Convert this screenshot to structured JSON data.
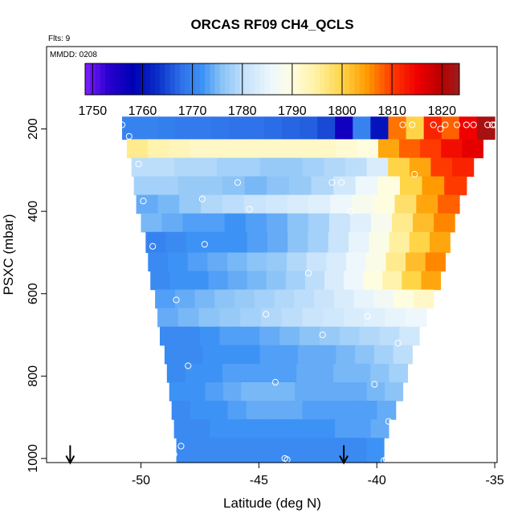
{
  "chart_data": {
    "type": "heatmap",
    "title": "ORCAS RF09 CH4_QCLS",
    "flights_note": "Flts: 9",
    "date_note": "MMDD: 0208",
    "xlabel": "Latitude (deg N)",
    "ylabel": "PSXC (mbar)",
    "xlim": [
      -54,
      -34.9
    ],
    "ylim": [
      1010,
      0
    ],
    "x_ticks": [
      -50,
      -45,
      -40,
      -35
    ],
    "x_tick_labels": [
      "-50",
      "-45",
      "-40",
      "-35"
    ],
    "y_ticks": [
      200,
      400,
      600,
      800,
      1000
    ],
    "y_tick_labels": [
      "200",
      "400",
      "600",
      "800",
      "1000"
    ],
    "colorbar": {
      "min": 1748.5,
      "max": 1823.5,
      "ticks": [
        1750,
        1760,
        1770,
        1780,
        1790,
        1800,
        1810,
        1820
      ],
      "tick_labels": [
        "1750",
        "1760",
        "1770",
        "1780",
        "1790",
        "1800",
        "1810",
        "1820"
      ]
    },
    "color_stops": [
      {
        "v": 1748.5,
        "c": "#7f1fff"
      },
      {
        "v": 1753,
        "c": "#2b00d0"
      },
      {
        "v": 1758,
        "c": "#0000b4"
      },
      {
        "v": 1763,
        "c": "#0a2fc8"
      },
      {
        "v": 1768,
        "c": "#2f73ea"
      },
      {
        "v": 1772,
        "c": "#3d92f5"
      },
      {
        "v": 1776,
        "c": "#8cc4f7"
      },
      {
        "v": 1781,
        "c": "#c9e4fb"
      },
      {
        "v": 1786,
        "c": "#eef8fc"
      },
      {
        "v": 1790,
        "c": "#fffde0"
      },
      {
        "v": 1795,
        "c": "#fff0a0"
      },
      {
        "v": 1800,
        "c": "#ffd447"
      },
      {
        "v": 1805,
        "c": "#ff9a00"
      },
      {
        "v": 1810,
        "c": "#ff3a00"
      },
      {
        "v": 1815,
        "c": "#f00000"
      },
      {
        "v": 1820,
        "c": "#b80000"
      },
      {
        "v": 1823.5,
        "c": "#9a1e1e"
      }
    ],
    "profile_bands": [
      {
        "p_top": 170,
        "p_bot": 225,
        "lat_start": -50.8,
        "lat_end": -35.0,
        "values": [
          1770,
          1770,
          1769.5,
          1769,
          1769,
          1768.5,
          1768,
          1768,
          1767.5,
          1767,
          1766.5,
          1765,
          1756,
          1770,
          1760,
          1807,
          1800,
          1812,
          1808,
          1815,
          1822
        ]
      },
      {
        "p_top": 225,
        "p_bot": 270,
        "lat_start": -50.6,
        "lat_end": -35.5,
        "values": [
          1796,
          1794,
          1793,
          1792,
          1792,
          1792,
          1792,
          1792,
          1792,
          1792,
          1791,
          1790,
          1804,
          1808,
          1810,
          1814,
          1816
        ]
      },
      {
        "p_top": 270,
        "p_bot": 315,
        "lat_start": -50.4,
        "lat_end": -35.9,
        "values": [
          1780,
          1780,
          1779,
          1779,
          1778,
          1778,
          1777,
          1777,
          1778,
          1779,
          1780,
          1783,
          1800,
          1804,
          1810,
          1812
        ]
      },
      {
        "p_top": 315,
        "p_bot": 360,
        "lat_start": -50.3,
        "lat_end": -36.2,
        "values": [
          1778,
          1778,
          1777,
          1777,
          1776,
          1775,
          1776,
          1777,
          1779,
          1782,
          1786,
          1790,
          1800,
          1805,
          1810
        ]
      },
      {
        "p_top": 360,
        "p_bot": 405,
        "lat_start": -50.2,
        "lat_end": -36.5,
        "values": [
          1774,
          1775,
          1777,
          1779,
          1780,
          1781,
          1782,
          1783,
          1784,
          1786,
          1788,
          1790,
          1798,
          1804,
          1808
        ]
      },
      {
        "p_top": 405,
        "p_bot": 450,
        "lat_start": -50.0,
        "lat_end": -36.7,
        "values": [
          1775,
          1774,
          1773,
          1773,
          1772,
          1773,
          1774,
          1776,
          1778,
          1781,
          1784,
          1788,
          1796,
          1802,
          1806
        ]
      },
      {
        "p_top": 450,
        "p_bot": 500,
        "lat_start": -49.8,
        "lat_end": -36.9,
        "values": [
          1770,
          1771,
          1772,
          1772,
          1772,
          1773,
          1774,
          1776,
          1778,
          1781,
          1785,
          1789,
          1795,
          1800,
          1804
        ]
      },
      {
        "p_top": 500,
        "p_bot": 545,
        "lat_start": -49.7,
        "lat_end": -37.1,
        "values": [
          1771,
          1772,
          1773,
          1774,
          1775,
          1776,
          1777,
          1779,
          1781,
          1783,
          1786,
          1789,
          1796,
          1802,
          1806
        ]
      },
      {
        "p_top": 545,
        "p_bot": 590,
        "lat_start": -49.6,
        "lat_end": -37.3,
        "values": [
          1771,
          1772,
          1772,
          1773,
          1774,
          1775,
          1776,
          1778,
          1780,
          1783,
          1786,
          1790,
          1794,
          1800,
          1804
        ]
      },
      {
        "p_top": 590,
        "p_bot": 635,
        "lat_start": -49.4,
        "lat_end": -37.6,
        "values": [
          1773,
          1774,
          1775,
          1776,
          1777,
          1778,
          1779,
          1780,
          1781,
          1783,
          1785,
          1787,
          1790,
          1792
        ]
      },
      {
        "p_top": 635,
        "p_bot": 680,
        "lat_start": -49.3,
        "lat_end": -37.9,
        "values": [
          1774,
          1775,
          1776,
          1777,
          1778,
          1779,
          1780,
          1781,
          1782,
          1783,
          1784,
          1785,
          1786
        ]
      },
      {
        "p_top": 680,
        "p_bot": 725,
        "lat_start": -49.2,
        "lat_end": -38.2,
        "values": [
          1771,
          1771,
          1772,
          1773,
          1773,
          1774,
          1775,
          1776,
          1777,
          1778,
          1779,
          1780,
          1782
        ]
      },
      {
        "p_top": 725,
        "p_bot": 770,
        "lat_start": -49.0,
        "lat_end": -38.5,
        "values": [
          1771,
          1771,
          1772,
          1772,
          1772,
          1773,
          1773,
          1774,
          1774,
          1775,
          1776,
          1778,
          1780
        ]
      },
      {
        "p_top": 770,
        "p_bot": 815,
        "lat_start": -48.9,
        "lat_end": -38.7,
        "values": [
          1771,
          1772,
          1772,
          1773,
          1773,
          1773,
          1773,
          1774,
          1774,
          1775,
          1775,
          1776,
          1778
        ]
      },
      {
        "p_top": 815,
        "p_bot": 860,
        "lat_start": -48.8,
        "lat_end": -38.9,
        "values": [
          1772,
          1772,
          1773,
          1774,
          1775,
          1775,
          1775,
          1774,
          1774,
          1774,
          1774,
          1775,
          1776
        ]
      },
      {
        "p_top": 860,
        "p_bot": 905,
        "lat_start": -48.7,
        "lat_end": -39.2,
        "values": [
          1771,
          1772,
          1772,
          1773,
          1774,
          1774,
          1774,
          1773,
          1773,
          1773,
          1773,
          1774
        ]
      },
      {
        "p_top": 905,
        "p_bot": 950,
        "lat_start": -48.6,
        "lat_end": -39.5,
        "values": [
          1771,
          1771,
          1772,
          1772,
          1772,
          1772,
          1772,
          1772,
          1772,
          1773,
          1773,
          1774
        ]
      },
      {
        "p_top": 950,
        "p_bot": 1010,
        "lat_start": -48.5,
        "lat_end": -39.7,
        "values": [
          1771,
          1771,
          1771,
          1771,
          1771,
          1771,
          1771,
          1771,
          1771,
          1771,
          1771,
          1772
        ]
      }
    ],
    "sample_points": [
      {
        "lat": -50.8,
        "p": 190
      },
      {
        "lat": -50.5,
        "p": 218
      },
      {
        "lat": -50.1,
        "p": 285
      },
      {
        "lat": -49.9,
        "p": 375
      },
      {
        "lat": -49.5,
        "p": 485
      },
      {
        "lat": -48.5,
        "p": 615
      },
      {
        "lat": -48.0,
        "p": 775
      },
      {
        "lat": -48.7,
        "p": 975
      },
      {
        "lat": -48.6,
        "p": 990
      },
      {
        "lat": -48.3,
        "p": 970
      },
      {
        "lat": -47.4,
        "p": 370
      },
      {
        "lat": -47.3,
        "p": 480
      },
      {
        "lat": -45.9,
        "p": 330
      },
      {
        "lat": -45.4,
        "p": 395
      },
      {
        "lat": -44.7,
        "p": 650
      },
      {
        "lat": -44.3,
        "p": 815
      },
      {
        "lat": -43.9,
        "p": 1000
      },
      {
        "lat": -43.8,
        "p": 1003
      },
      {
        "lat": -42.9,
        "p": 550
      },
      {
        "lat": -42.3,
        "p": 700
      },
      {
        "lat": -41.9,
        "p": 330
      },
      {
        "lat": -41.5,
        "p": 330
      },
      {
        "lat": -41.1,
        "p": 400
      },
      {
        "lat": -40.4,
        "p": 655
      },
      {
        "lat": -40.1,
        "p": 820
      },
      {
        "lat": -39.7,
        "p": 1005
      },
      {
        "lat": -39.6,
        "p": 1003
      },
      {
        "lat": -39.5,
        "p": 910
      },
      {
        "lat": -39.1,
        "p": 720
      },
      {
        "lat": -38.9,
        "p": 190
      },
      {
        "lat": -38.5,
        "p": 190
      },
      {
        "lat": -38.4,
        "p": 310
      },
      {
        "lat": -37.6,
        "p": 190
      },
      {
        "lat": -37.3,
        "p": 200
      },
      {
        "lat": -37.1,
        "p": 190
      },
      {
        "lat": -36.6,
        "p": 190
      },
      {
        "lat": -36.2,
        "p": 190
      },
      {
        "lat": -35.9,
        "p": 190
      },
      {
        "lat": -35.3,
        "p": 190
      },
      {
        "lat": -35.1,
        "p": 190
      },
      {
        "lat": -35.0,
        "p": 190
      }
    ],
    "arrows": [
      {
        "lat": -53.0,
        "p": 1010
      },
      {
        "lat": -41.4,
        "p": 1010
      }
    ]
  }
}
